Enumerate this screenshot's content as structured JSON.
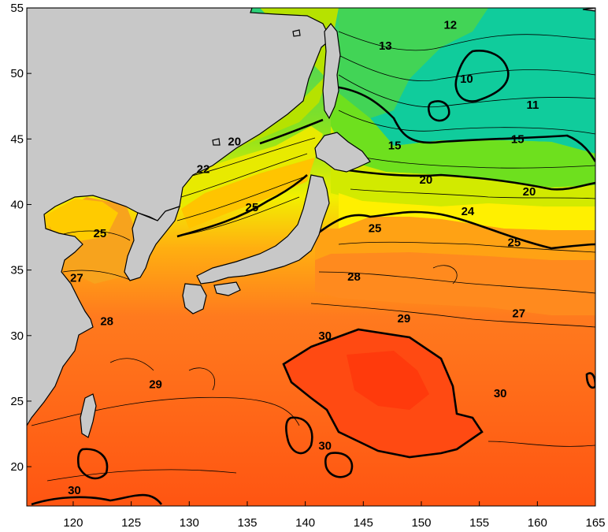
{
  "map": {
    "x_ticks": [
      "120",
      "125",
      "130",
      "135",
      "140",
      "145",
      "150",
      "155",
      "160",
      "165"
    ],
    "y_ticks": [
      "55",
      "50",
      "45",
      "40",
      "35",
      "30",
      "25",
      "20"
    ],
    "contour_labels": [
      "12",
      "13",
      "10",
      "11",
      "20",
      "15",
      "15",
      "22",
      "20",
      "20",
      "25",
      "24",
      "25",
      "25",
      "25",
      "27",
      "28",
      "28",
      "27",
      "29",
      "30",
      "30",
      "29",
      "30",
      "30"
    ],
    "colors": {
      "land": "#c8c8c8",
      "sst_10": "#00d0a0",
      "sst_13": "#30d060",
      "sst_15": "#70e020",
      "sst_20": "#d8ec00",
      "sst_24": "#ffd000",
      "sst_25": "#f8a020",
      "sst_28": "#ff8020",
      "sst_29": "#ff6010",
      "sst_30": "#ff4010"
    }
  },
  "chart_data": {
    "type": "heatmap",
    "title": "",
    "xlabel": "",
    "ylabel": "",
    "xlim": [
      116,
      165
    ],
    "ylim": [
      17,
      55
    ],
    "x_ticks": [
      120,
      125,
      130,
      135,
      140,
      145,
      150,
      155,
      160,
      165
    ],
    "y_ticks": [
      55,
      50,
      45,
      40,
      35,
      30,
      25,
      20
    ],
    "contour_interval": 1,
    "bold_contours": [
      15,
      20,
      25,
      30
    ],
    "labeled_contours": [
      {
        "value": 12,
        "lon": 152.5,
        "lat": 53.7
      },
      {
        "value": 13,
        "lon": 146.9,
        "lat": 52.1
      },
      {
        "value": 10,
        "lon": 153.9,
        "lat": 49.6
      },
      {
        "value": 11,
        "lon": 159.6,
        "lat": 47.6
      },
      {
        "value": 20,
        "lon": 133.9,
        "lat": 44.8
      },
      {
        "value": 15,
        "lon": 147.7,
        "lat": 44.5
      },
      {
        "value": 15,
        "lon": 158.3,
        "lat": 45.0
      },
      {
        "value": 22,
        "lon": 131.2,
        "lat": 42.7
      },
      {
        "value": 20,
        "lon": 150.4,
        "lat": 41.9
      },
      {
        "value": 20,
        "lon": 159.3,
        "lat": 41.0
      },
      {
        "value": 25,
        "lon": 135.4,
        "lat": 39.8
      },
      {
        "value": 24,
        "lon": 154.0,
        "lat": 39.5
      },
      {
        "value": 25,
        "lon": 122.3,
        "lat": 37.8
      },
      {
        "value": 25,
        "lon": 146.0,
        "lat": 38.2
      },
      {
        "value": 25,
        "lon": 158.0,
        "lat": 37.1
      },
      {
        "value": 27,
        "lon": 120.3,
        "lat": 34.4
      },
      {
        "value": 28,
        "lon": 144.2,
        "lat": 34.5
      },
      {
        "value": 28,
        "lon": 122.9,
        "lat": 31.1
      },
      {
        "value": 27,
        "lon": 158.4,
        "lat": 31.7
      },
      {
        "value": 29,
        "lon": 148.5,
        "lat": 31.3
      },
      {
        "value": 30,
        "lon": 141.7,
        "lat": 30.0
      },
      {
        "value": 30,
        "lon": 156.8,
        "lat": 25.6
      },
      {
        "value": 29,
        "lon": 127.1,
        "lat": 26.3
      },
      {
        "value": 30,
        "lon": 141.7,
        "lat": 21.6
      },
      {
        "value": 30,
        "lon": 120.1,
        "lat": 18.2
      }
    ]
  }
}
